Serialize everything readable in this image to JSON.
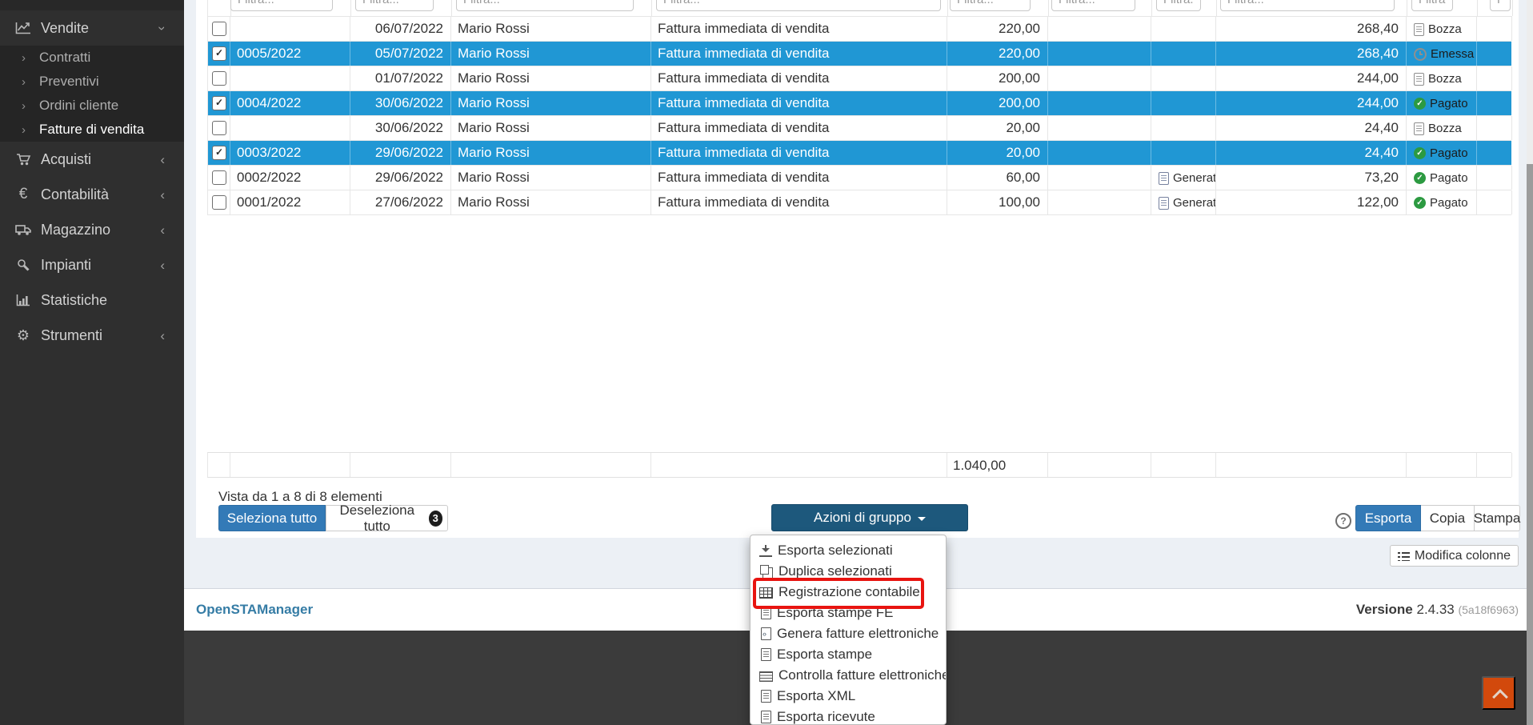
{
  "sidebar": {
    "items": [
      {
        "label": "Vendite"
      },
      {
        "label": "Acquisti"
      },
      {
        "label": "Contabilità"
      },
      {
        "label": "Magazzino"
      },
      {
        "label": "Impianti"
      },
      {
        "label": "Statistiche"
      },
      {
        "label": "Strumenti"
      }
    ],
    "vendite_children": [
      {
        "label": "Contratti"
      },
      {
        "label": "Preventivi"
      },
      {
        "label": "Ordini cliente"
      },
      {
        "label": "Fatture di vendita",
        "active": true
      }
    ]
  },
  "filters": {
    "placeholder": "Filtra..."
  },
  "table": {
    "rows": [
      {
        "numero": "",
        "data": "06/07/2022",
        "cliente": "Mario Rossi",
        "tipo": "Fattura immediata di vendita",
        "imponibile": "220,00",
        "fe": "",
        "totale": "268,40",
        "stato": "Bozza",
        "stato_type": "bozza",
        "selected": false
      },
      {
        "numero": "0005/2022",
        "data": "05/07/2022",
        "cliente": "Mario Rossi",
        "tipo": "Fattura immediata di vendita",
        "imponibile": "220,00",
        "fe": "",
        "totale": "268,40",
        "stato": "Emessa",
        "stato_type": "emessa",
        "selected": true
      },
      {
        "numero": "",
        "data": "01/07/2022",
        "cliente": "Mario Rossi",
        "tipo": "Fattura immediata di vendita",
        "imponibile": "200,00",
        "fe": "",
        "totale": "244,00",
        "stato": "Bozza",
        "stato_type": "bozza",
        "selected": false
      },
      {
        "numero": "0004/2022",
        "data": "30/06/2022",
        "cliente": "Mario Rossi",
        "tipo": "Fattura immediata di vendita",
        "imponibile": "200,00",
        "fe": "",
        "totale": "244,00",
        "stato": "Pagato",
        "stato_type": "pagato",
        "selected": true
      },
      {
        "numero": "",
        "data": "30/06/2022",
        "cliente": "Mario Rossi",
        "tipo": "Fattura immediata di vendita",
        "imponibile": "20,00",
        "fe": "",
        "totale": "24,40",
        "stato": "Bozza",
        "stato_type": "bozza",
        "selected": false
      },
      {
        "numero": "0003/2022",
        "data": "29/06/2022",
        "cliente": "Mario Rossi",
        "tipo": "Fattura immediata di vendita",
        "imponibile": "20,00",
        "fe": "",
        "totale": "24,40",
        "stato": "Pagato",
        "stato_type": "pagato",
        "selected": true
      },
      {
        "numero": "0002/2022",
        "data": "29/06/2022",
        "cliente": "Mario Rossi",
        "tipo": "Fattura immediata di vendita",
        "imponibile": "60,00",
        "fe": "Generata",
        "totale": "73,20",
        "stato": "Pagato",
        "stato_type": "pagato",
        "selected": false
      },
      {
        "numero": "0001/2022",
        "data": "27/06/2022",
        "cliente": "Mario Rossi",
        "tipo": "Fattura immediata di vendita",
        "imponibile": "100,00",
        "fe": "Generata",
        "totale": "122,00",
        "stato": "Pagato",
        "stato_type": "pagato",
        "selected": false
      }
    ],
    "total_imponibile": "1.040,00"
  },
  "pagination": {
    "info": "Vista da 1 a 8 di 8 elementi"
  },
  "toolbar": {
    "select_all": "Seleziona tutto",
    "deselect_all": "Deseleziona tutto",
    "deselect_count": "3",
    "group_actions": "Azioni di gruppo",
    "help": "?",
    "export_label": "Esporta",
    "copy_label": "Copia",
    "print_label": "Stampa",
    "edit_columns": "Modifica colonne"
  },
  "dropdown": {
    "items": [
      {
        "label": "Esporta selezionati",
        "icon": "download"
      },
      {
        "label": "Duplica selezionati",
        "icon": "clone"
      },
      {
        "label": "Registrazione contabile",
        "icon": "table",
        "highlighted": true
      },
      {
        "label": "Esporta stampe FE",
        "icon": "file"
      },
      {
        "label": "Genera fatture elettroniche",
        "icon": "file-code"
      },
      {
        "label": "Esporta stampe",
        "icon": "file"
      },
      {
        "label": "Controlla fatture elettroniche",
        "icon": "list"
      },
      {
        "label": "Esporta XML",
        "icon": "file"
      },
      {
        "label": "Esporta ricevute",
        "icon": "file"
      }
    ]
  },
  "footer": {
    "brand": "OpenSTAManager",
    "version_label": "Versione",
    "version_number": "2.4.33",
    "build_hash": "(5a18f6963)"
  },
  "colors": {
    "accent_blue": "#337ab7",
    "selected_row_blue": "#2097d4",
    "group_button_blue": "#1d587c",
    "scroll_top_orange": "#d2490c",
    "annotation_red": "#e81410",
    "paid_green": "#2c9a41"
  }
}
